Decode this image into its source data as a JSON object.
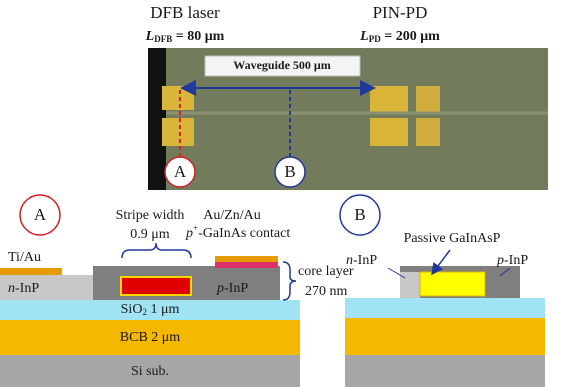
{
  "photo": {
    "dfb_title": "DFB laser",
    "dfb_length": {
      "symbol": "L",
      "subscript": "DFB",
      "value": " = 80 μm"
    },
    "pd_title": "PIN-PD",
    "pd_length": {
      "symbol": "L",
      "subscript": "PD",
      "value": " = 200 μm"
    },
    "waveguide": "Waveguide 500 μm",
    "marker_a": "A",
    "marker_b": "B"
  },
  "section_a": {
    "marker": "A",
    "stripe_width": "Stripe width",
    "stripe_value": "0.9 μm",
    "contact_metal": "Au/Zn/Au",
    "contact_layer": {
      "prefix": "p",
      "sup": "+",
      "rest": "-GaInAs contact"
    },
    "ti_au": "Ti/Au",
    "n_inp": {
      "prefix": "n",
      "rest": "-InP"
    },
    "p_inp": {
      "prefix": "p",
      "rest": "-InP"
    },
    "core_layer": "core layer",
    "core_thickness": "270 nm",
    "sio2": {
      "base": "SiO",
      "sub": "2",
      "rest": " 1 μm"
    },
    "bcb": "BCB 2 μm",
    "si": "Si sub."
  },
  "section_b": {
    "marker": "B",
    "passive": "Passive GaInAsP",
    "n_inp": {
      "prefix": "n",
      "rest": "-InP"
    },
    "p_inp": {
      "prefix": "p",
      "rest": "-InP"
    }
  }
}
